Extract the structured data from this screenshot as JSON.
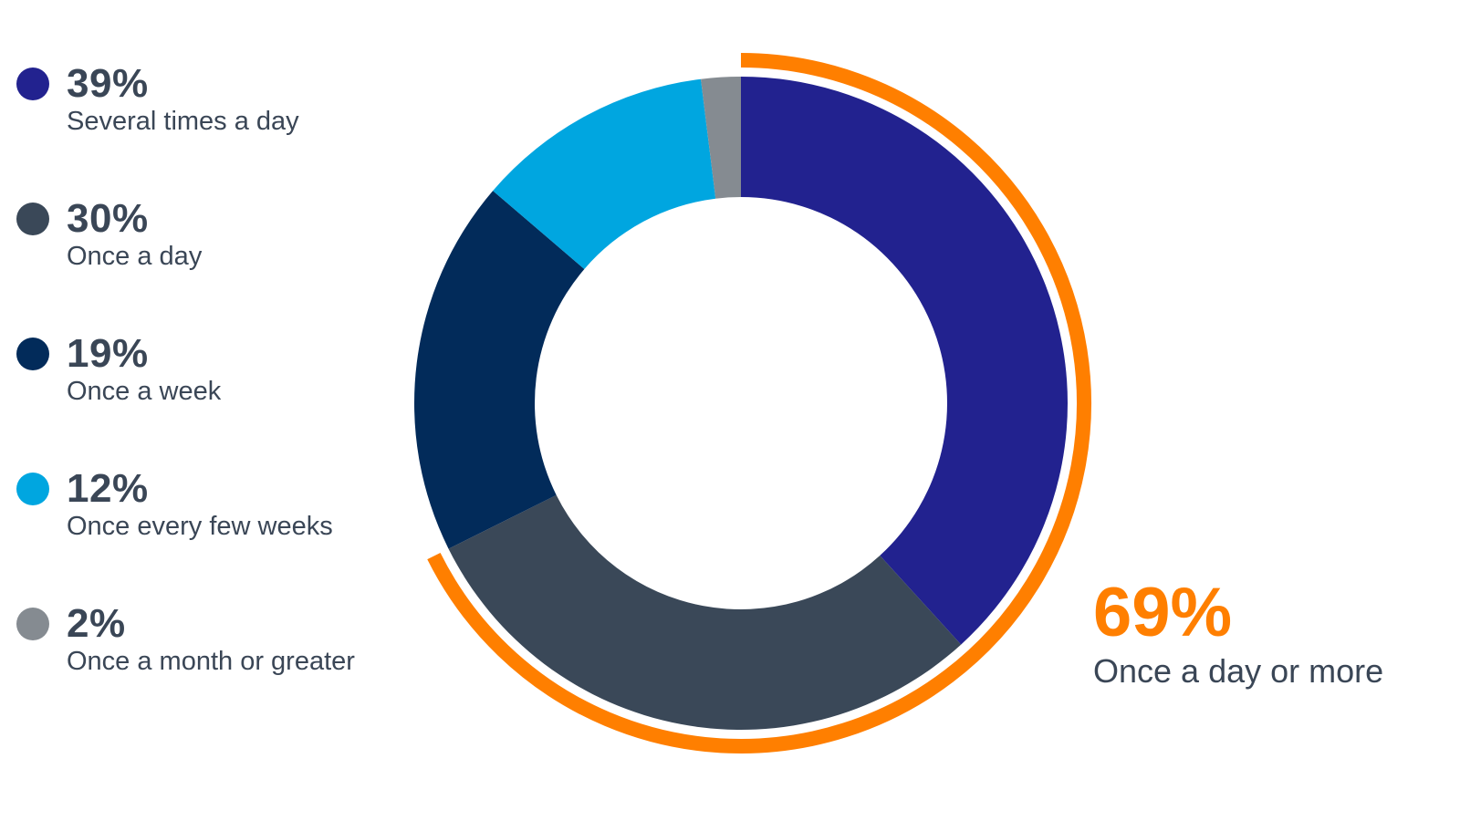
{
  "chart_data": {
    "type": "pie",
    "variant": "donut",
    "series": [
      {
        "label": "Several times a day",
        "value": 39,
        "value_label": "39%",
        "color": "#22228f"
      },
      {
        "label": "Once a day",
        "value": 30,
        "value_label": "30%",
        "color": "#3a4858"
      },
      {
        "label": "Once a week",
        "value": 19,
        "value_label": "19%",
        "color": "#022b5a"
      },
      {
        "label": "Once every few weeks",
        "value": 12,
        "value_label": "12%",
        "color": "#00a6e0"
      },
      {
        "label": "Once a month or greater",
        "value": 2,
        "value_label": "2%",
        "color": "#858b91"
      }
    ],
    "highlight": {
      "value": 69,
      "value_label": "69%",
      "label": "Once a day or more",
      "color": "#ff7f00"
    },
    "legend_position": "left"
  }
}
